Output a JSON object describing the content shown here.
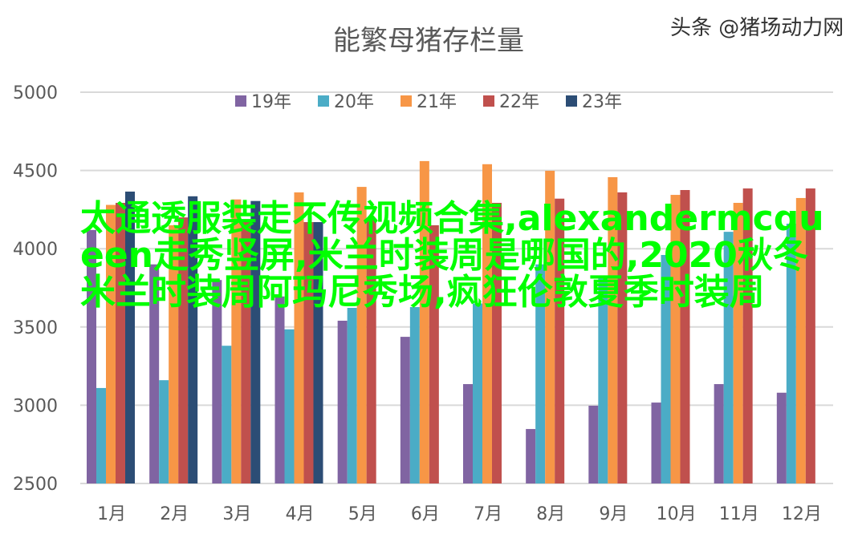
{
  "chart_data": {
    "type": "bar",
    "title": "能繁母猪存栏量",
    "categories": [
      "1月",
      "2月",
      "3月",
      "4月",
      "5月",
      "6月",
      "7月",
      "8月",
      "9月",
      "10月",
      "11月",
      "12月"
    ],
    "ylim": [
      2500,
      5000
    ],
    "yticks": [
      2500,
      3000,
      3500,
      4000,
      4500,
      5000
    ],
    "grid": true,
    "legend_position": "top",
    "series": [
      {
        "name": "19年",
        "color": "#8064a2",
        "values": [
          4120,
          3900,
          3800,
          3695,
          3540,
          3437,
          3135,
          2848,
          2997,
          3017,
          3135,
          3080
        ]
      },
      {
        "name": "20年",
        "color": "#4bacc6",
        "values": [
          3110,
          3160,
          3380,
          3485,
          3622,
          3627,
          3650,
          3900,
          3822,
          3960,
          4108,
          4160
        ]
      },
      {
        "name": "21年",
        "color": "#f79646",
        "values": [
          4280,
          4150,
          4315,
          4360,
          4395,
          4560,
          4540,
          4498,
          4457,
          4344,
          4293,
          4324
        ]
      },
      {
        "name": "22年",
        "color": "#c0504d",
        "values": [
          4293,
          4200,
          4180,
          4170,
          4190,
          4150,
          4293,
          4320,
          4360,
          4375,
          4385,
          4385
        ]
      },
      {
        "name": "23年",
        "color": "#2c4d75",
        "values": [
          4365,
          4335,
          4305,
          4170,
          null,
          null,
          null,
          null,
          null,
          null,
          null,
          null
        ]
      }
    ]
  },
  "overlay_text": "太通透服装走不传视频合集,alexandermcqueen走秀竖屏,米兰时装周是哪国的,2020秋冬米兰时装周阿玛尼秀场,疯狂伦敦夏季时装周",
  "watermark": "头条 @猪场动力网"
}
